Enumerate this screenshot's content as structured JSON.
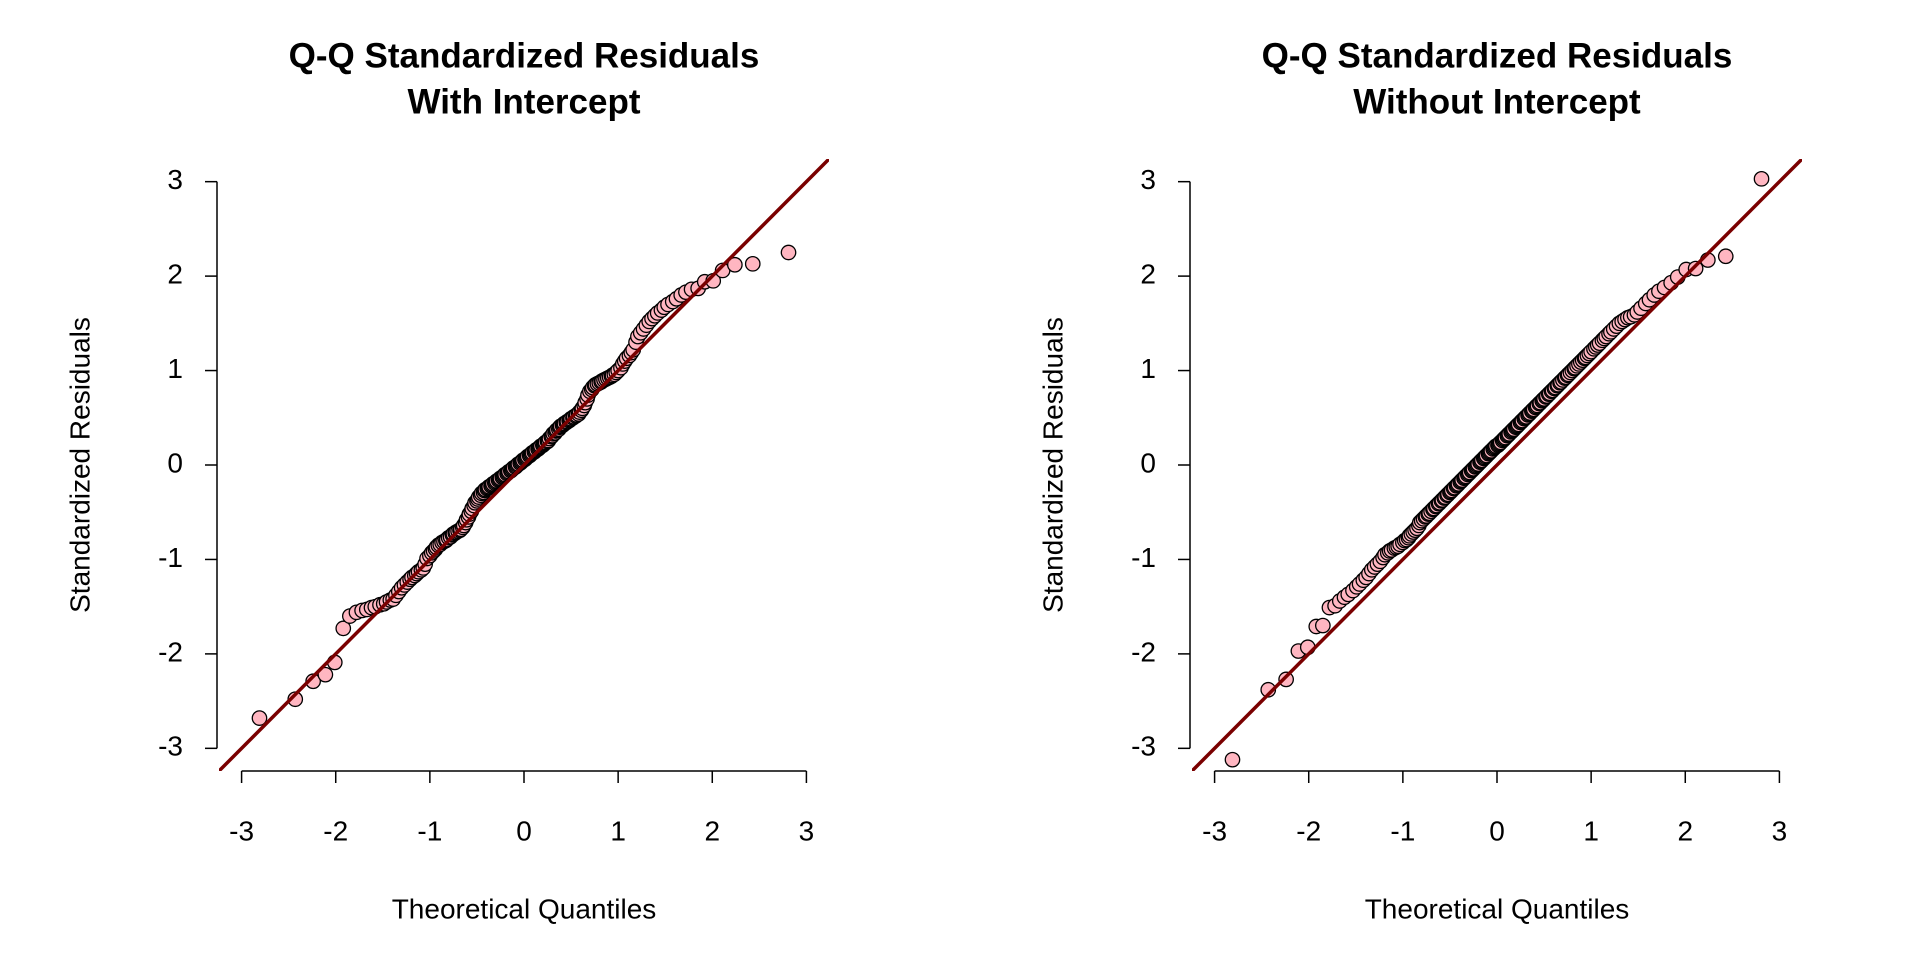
{
  "chart_data": [
    {
      "type": "scatter",
      "title": "Q-Q Standardized Residuals",
      "subtitle": "With Intercept",
      "x_label": "Theoretical Quantiles",
      "y_label": "Standardized Residuals",
      "color": "#ffb6c1",
      "edge_color": "#000000",
      "reference_line": {
        "intercept": 0,
        "slope": 1,
        "color": "#7a0000"
      },
      "xlim": [
        -3.24,
        3.24
      ],
      "ylim": [
        -3.24,
        3.24
      ],
      "xticks": [
        -3,
        -2,
        -1,
        0,
        1,
        2,
        3
      ],
      "yticks": [
        -3,
        -2,
        -1,
        0,
        1,
        2,
        3
      ],
      "x": [
        -2.81,
        -2.43,
        -2.24,
        -2.11,
        -2.01,
        -1.92,
        -1.85,
        -1.78,
        -1.72,
        -1.67,
        -1.62,
        -1.58,
        -1.53,
        -1.49,
        -1.46,
        -1.42,
        -1.39,
        -1.36,
        -1.33,
        -1.3,
        -1.27,
        -1.24,
        -1.21,
        -1.19,
        -1.16,
        -1.14,
        -1.12,
        -1.09,
        -1.07,
        -1.05,
        -1.03,
        -1.0,
        -0.98,
        -0.96,
        -0.94,
        -0.93,
        -0.91,
        -0.89,
        -0.87,
        -0.85,
        -0.83,
        -0.82,
        -0.8,
        -0.78,
        -0.76,
        -0.75,
        -0.73,
        -0.72,
        -0.7,
        -0.68,
        -0.67,
        -0.65,
        -0.64,
        -0.62,
        -0.61,
        -0.59,
        -0.58,
        -0.56,
        -0.55,
        -0.53,
        -0.52,
        -0.5,
        -0.49,
        -0.48,
        -0.46,
        -0.45,
        -0.43,
        -0.42,
        -0.41,
        -0.39,
        -0.38,
        -0.37,
        -0.35,
        -0.34,
        -0.33,
        -0.31,
        -0.3,
        -0.29,
        -0.27,
        -0.26,
        -0.25,
        -0.23,
        -0.22,
        -0.21,
        -0.2,
        -0.18,
        -0.17,
        -0.16,
        -0.14,
        -0.13,
        -0.12,
        -0.11,
        -0.09,
        -0.08,
        -0.07,
        -0.06,
        -0.04,
        -0.03,
        -0.02,
        -0.01,
        0.01,
        0.02,
        0.03,
        0.04,
        0.06,
        0.07,
        0.08,
        0.09,
        0.11,
        0.12,
        0.13,
        0.15,
        0.16,
        0.17,
        0.18,
        0.2,
        0.21,
        0.22,
        0.23,
        0.25,
        0.26,
        0.27,
        0.29,
        0.3,
        0.31,
        0.33,
        0.34,
        0.35,
        0.37,
        0.38,
        0.39,
        0.41,
        0.42,
        0.43,
        0.45,
        0.46,
        0.48,
        0.49,
        0.5,
        0.52,
        0.53,
        0.55,
        0.56,
        0.58,
        0.59,
        0.61,
        0.62,
        0.64,
        0.65,
        0.67,
        0.68,
        0.7,
        0.72,
        0.73,
        0.75,
        0.76,
        0.78,
        0.8,
        0.82,
        0.83,
        0.85,
        0.87,
        0.89,
        0.91,
        0.93,
        0.94,
        0.96,
        0.98,
        1.0,
        1.03,
        1.05,
        1.07,
        1.09,
        1.12,
        1.14,
        1.16,
        1.19,
        1.21,
        1.24,
        1.27,
        1.3,
        1.33,
        1.36,
        1.39,
        1.42,
        1.46,
        1.49,
        1.53,
        1.58,
        1.62,
        1.67,
        1.72,
        1.78,
        1.85,
        1.92,
        2.01,
        2.11,
        2.24,
        2.43,
        2.81
      ],
      "values": [
        -2.68,
        -2.48,
        -2.29,
        -2.22,
        -2.09,
        -1.73,
        -1.6,
        -1.56,
        -1.54,
        -1.53,
        -1.51,
        -1.5,
        -1.48,
        -1.47,
        -1.45,
        -1.43,
        -1.42,
        -1.38,
        -1.34,
        -1.3,
        -1.27,
        -1.24,
        -1.21,
        -1.19,
        -1.17,
        -1.15,
        -1.13,
        -1.11,
        -1.09,
        -1.05,
        -0.99,
        -0.96,
        -0.93,
        -0.91,
        -0.89,
        -0.87,
        -0.85,
        -0.84,
        -0.82,
        -0.81,
        -0.8,
        -0.79,
        -0.77,
        -0.76,
        -0.74,
        -0.73,
        -0.72,
        -0.71,
        -0.7,
        -0.69,
        -0.68,
        -0.66,
        -0.64,
        -0.61,
        -0.58,
        -0.55,
        -0.52,
        -0.49,
        -0.46,
        -0.43,
        -0.4,
        -0.38,
        -0.36,
        -0.34,
        -0.32,
        -0.3,
        -0.29,
        -0.27,
        -0.26,
        -0.25,
        -0.24,
        -0.23,
        -0.22,
        -0.21,
        -0.2,
        -0.19,
        -0.18,
        -0.17,
        -0.16,
        -0.15,
        -0.14,
        -0.13,
        -0.12,
        -0.11,
        -0.1,
        -0.09,
        -0.08,
        -0.07,
        -0.06,
        -0.05,
        -0.04,
        -0.03,
        -0.02,
        -0.01,
        0.0,
        0.01,
        0.02,
        0.03,
        0.04,
        0.05,
        0.06,
        0.07,
        0.08,
        0.09,
        0.1,
        0.11,
        0.12,
        0.13,
        0.14,
        0.15,
        0.16,
        0.17,
        0.18,
        0.19,
        0.2,
        0.21,
        0.22,
        0.23,
        0.24,
        0.25,
        0.26,
        0.28,
        0.3,
        0.31,
        0.33,
        0.34,
        0.36,
        0.37,
        0.38,
        0.4,
        0.41,
        0.42,
        0.43,
        0.44,
        0.45,
        0.46,
        0.47,
        0.48,
        0.49,
        0.5,
        0.51,
        0.52,
        0.53,
        0.54,
        0.56,
        0.58,
        0.6,
        0.63,
        0.66,
        0.7,
        0.74,
        0.78,
        0.8,
        0.82,
        0.84,
        0.85,
        0.86,
        0.87,
        0.88,
        0.89,
        0.9,
        0.91,
        0.92,
        0.93,
        0.94,
        0.95,
        0.96,
        0.98,
        1.0,
        1.03,
        1.07,
        1.1,
        1.13,
        1.16,
        1.19,
        1.22,
        1.3,
        1.36,
        1.4,
        1.44,
        1.48,
        1.52,
        1.55,
        1.58,
        1.61,
        1.64,
        1.67,
        1.7,
        1.73,
        1.76,
        1.8,
        1.83,
        1.86,
        1.87,
        1.94,
        1.95,
        2.06,
        2.12,
        2.13,
        2.25
      ]
    },
    {
      "type": "scatter",
      "title": "Q-Q Standardized Residuals",
      "subtitle": "Without Intercept",
      "x_label": "Theoretical Quantiles",
      "y_label": "Standardized Residuals",
      "color": "#ffb6c1",
      "edge_color": "#000000",
      "reference_line": {
        "intercept": 0,
        "slope": 1,
        "color": "#7a0000"
      },
      "xlim": [
        -3.24,
        3.24
      ],
      "ylim": [
        -3.24,
        3.24
      ],
      "xticks": [
        -3,
        -2,
        -1,
        0,
        1,
        2,
        3
      ],
      "yticks": [
        -3,
        -2,
        -1,
        0,
        1,
        2,
        3
      ],
      "x": [
        -2.81,
        -2.43,
        -2.24,
        -2.11,
        -2.01,
        -1.92,
        -1.85,
        -1.78,
        -1.72,
        -1.67,
        -1.62,
        -1.58,
        -1.53,
        -1.49,
        -1.46,
        -1.42,
        -1.39,
        -1.36,
        -1.33,
        -1.3,
        -1.27,
        -1.24,
        -1.21,
        -1.19,
        -1.16,
        -1.14,
        -1.12,
        -1.09,
        -1.07,
        -1.05,
        -1.03,
        -1.0,
        -0.98,
        -0.96,
        -0.94,
        -0.93,
        -0.91,
        -0.89,
        -0.87,
        -0.85,
        -0.83,
        -0.82,
        -0.8,
        -0.78,
        -0.76,
        -0.75,
        -0.73,
        -0.72,
        -0.7,
        -0.68,
        -0.67,
        -0.65,
        -0.64,
        -0.62,
        -0.61,
        -0.59,
        -0.58,
        -0.56,
        -0.55,
        -0.53,
        -0.52,
        -0.5,
        -0.49,
        -0.48,
        -0.46,
        -0.45,
        -0.43,
        -0.42,
        -0.41,
        -0.39,
        -0.38,
        -0.37,
        -0.35,
        -0.34,
        -0.33,
        -0.31,
        -0.3,
        -0.29,
        -0.27,
        -0.26,
        -0.25,
        -0.23,
        -0.22,
        -0.21,
        -0.2,
        -0.18,
        -0.17,
        -0.16,
        -0.14,
        -0.13,
        -0.12,
        -0.11,
        -0.09,
        -0.08,
        -0.07,
        -0.06,
        -0.04,
        -0.03,
        -0.02,
        -0.01,
        0.01,
        0.02,
        0.03,
        0.04,
        0.06,
        0.07,
        0.08,
        0.09,
        0.11,
        0.12,
        0.13,
        0.15,
        0.16,
        0.17,
        0.18,
        0.2,
        0.21,
        0.22,
        0.23,
        0.25,
        0.26,
        0.27,
        0.29,
        0.3,
        0.31,
        0.33,
        0.34,
        0.35,
        0.37,
        0.38,
        0.39,
        0.41,
        0.42,
        0.43,
        0.45,
        0.46,
        0.48,
        0.49,
        0.5,
        0.52,
        0.53,
        0.55,
        0.56,
        0.58,
        0.59,
        0.61,
        0.62,
        0.64,
        0.65,
        0.67,
        0.68,
        0.7,
        0.72,
        0.73,
        0.75,
        0.76,
        0.78,
        0.8,
        0.82,
        0.83,
        0.85,
        0.87,
        0.89,
        0.91,
        0.93,
        0.94,
        0.96,
        0.98,
        1.0,
        1.03,
        1.05,
        1.07,
        1.09,
        1.12,
        1.14,
        1.16,
        1.19,
        1.21,
        1.24,
        1.27,
        1.3,
        1.33,
        1.36,
        1.39,
        1.42,
        1.46,
        1.49,
        1.53,
        1.58,
        1.62,
        1.67,
        1.72,
        1.78,
        1.85,
        1.92,
        2.01,
        2.11,
        2.24,
        2.43,
        2.81
      ],
      "values": [
        -3.12,
        -2.38,
        -2.27,
        -1.97,
        -1.93,
        -1.71,
        -1.7,
        -1.51,
        -1.49,
        -1.44,
        -1.4,
        -1.37,
        -1.33,
        -1.29,
        -1.26,
        -1.22,
        -1.19,
        -1.15,
        -1.11,
        -1.08,
        -1.05,
        -1.02,
        -0.98,
        -0.95,
        -0.93,
        -0.91,
        -0.9,
        -0.88,
        -0.87,
        -0.86,
        -0.84,
        -0.82,
        -0.8,
        -0.79,
        -0.77,
        -0.75,
        -0.73,
        -0.71,
        -0.69,
        -0.67,
        -0.64,
        -0.61,
        -0.59,
        -0.57,
        -0.55,
        -0.54,
        -0.52,
        -0.51,
        -0.49,
        -0.47,
        -0.46,
        -0.44,
        -0.43,
        -0.41,
        -0.4,
        -0.38,
        -0.37,
        -0.35,
        -0.34,
        -0.32,
        -0.31,
        -0.29,
        -0.28,
        -0.27,
        -0.25,
        -0.24,
        -0.22,
        -0.21,
        -0.2,
        -0.18,
        -0.17,
        -0.16,
        -0.14,
        -0.13,
        -0.12,
        -0.1,
        -0.09,
        -0.08,
        -0.06,
        -0.05,
        -0.04,
        -0.02,
        -0.01,
        0.0,
        0.01,
        0.03,
        0.04,
        0.05,
        0.07,
        0.08,
        0.09,
        0.1,
        0.12,
        0.13,
        0.14,
        0.15,
        0.17,
        0.18,
        0.19,
        0.2,
        0.21,
        0.22,
        0.23,
        0.24,
        0.26,
        0.27,
        0.28,
        0.29,
        0.31,
        0.32,
        0.33,
        0.35,
        0.36,
        0.37,
        0.38,
        0.4,
        0.41,
        0.42,
        0.43,
        0.45,
        0.46,
        0.47,
        0.49,
        0.5,
        0.51,
        0.53,
        0.54,
        0.55,
        0.57,
        0.58,
        0.59,
        0.61,
        0.62,
        0.63,
        0.65,
        0.66,
        0.68,
        0.69,
        0.7,
        0.72,
        0.73,
        0.75,
        0.76,
        0.78,
        0.79,
        0.81,
        0.82,
        0.84,
        0.85,
        0.87,
        0.88,
        0.9,
        0.92,
        0.93,
        0.95,
        0.96,
        0.98,
        1.0,
        1.02,
        1.03,
        1.05,
        1.07,
        1.09,
        1.11,
        1.13,
        1.14,
        1.16,
        1.18,
        1.2,
        1.23,
        1.25,
        1.27,
        1.29,
        1.32,
        1.34,
        1.36,
        1.39,
        1.41,
        1.44,
        1.47,
        1.5,
        1.52,
        1.54,
        1.56,
        1.57,
        1.59,
        1.62,
        1.66,
        1.71,
        1.75,
        1.8,
        1.84,
        1.88,
        1.93,
        1.99,
        2.07,
        2.08,
        2.17,
        2.21,
        3.03
      ]
    }
  ]
}
